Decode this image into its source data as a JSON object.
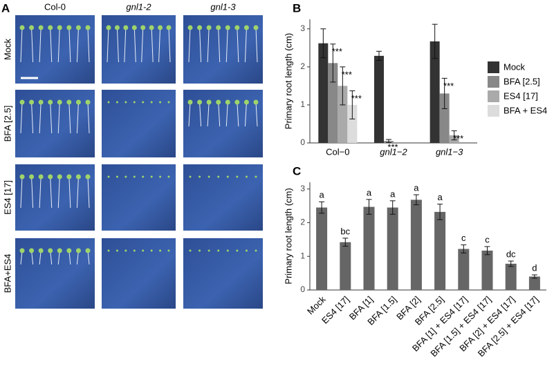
{
  "panel_a": {
    "panel_label": "A",
    "columns": [
      {
        "label": "Col-0",
        "italic": false
      },
      {
        "label": "gnl1-2",
        "italic": true
      },
      {
        "label": "gnl1-3",
        "italic": true
      }
    ],
    "rows": [
      "Mock",
      "BFA [2.5]",
      "ES4 [17]",
      "BFA+ES4"
    ]
  },
  "chart_data": [
    {
      "type": "bar",
      "panel_label": "B",
      "y_label": "Primary root length (cm)",
      "categories": [
        "Col−0",
        "gnl1−2",
        "gnl1−3"
      ],
      "italic_categories": [
        false,
        true,
        true
      ],
      "series": [
        {
          "name": "Mock",
          "color": "#333333",
          "values": [
            2.62,
            2.29,
            2.67
          ],
          "errors": [
            0.38,
            0.12,
            0.45
          ],
          "annotations": [
            null,
            null,
            null
          ]
        },
        {
          "name": "BFA [2.5]",
          "color": "#888888",
          "values": [
            2.1,
            0.05,
            1.3
          ],
          "errors": [
            0.5,
            0.04,
            0.4
          ],
          "annotations": [
            "***",
            "***",
            "***"
          ]
        },
        {
          "name": "ES4 [17]",
          "color": "#aaaaaa",
          "values": [
            1.5,
            null,
            0.2
          ],
          "errors": [
            0.5,
            null,
            0.12
          ],
          "annotations": [
            "***",
            null,
            "***"
          ]
        },
        {
          "name": "BFA + ES4",
          "color": "#dcdcdc",
          "values": [
            1.0,
            null,
            null
          ],
          "errors": [
            0.37,
            null,
            null
          ],
          "annotations": [
            "***",
            null,
            null
          ]
        }
      ],
      "ylim": [
        0,
        3.25
      ],
      "yticks": [
        0,
        1,
        2,
        3
      ]
    },
    {
      "type": "bar",
      "panel_label": "C",
      "y_label": "Primary root length (cm)",
      "categories": [
        "Mock",
        "ES4 [17]",
        "BFA [1]",
        "BFA [1.5]",
        "BFA [2]",
        "BFA [2.5]",
        "BFA [1] + ES4 [17]",
        "BFA [1.5] + ES4 [17]",
        "BFA [2] + ES4 [17]",
        "BFA [2.5] + ES4 [17]"
      ],
      "series": [
        {
          "color": "#666666",
          "values": [
            2.45,
            1.42,
            2.47,
            2.45,
            2.68,
            2.32,
            1.22,
            1.17,
            0.78,
            0.4
          ],
          "errors": [
            0.17,
            0.12,
            0.22,
            0.2,
            0.15,
            0.23,
            0.12,
            0.12,
            0.08,
            0.05
          ],
          "annotations": [
            "a",
            "bc",
            "a",
            "a",
            "a",
            "a",
            "c",
            "c",
            "dc",
            "d"
          ]
        }
      ],
      "ylim": [
        0,
        3.2
      ],
      "yticks": [
        0,
        1,
        2,
        3
      ]
    }
  ]
}
